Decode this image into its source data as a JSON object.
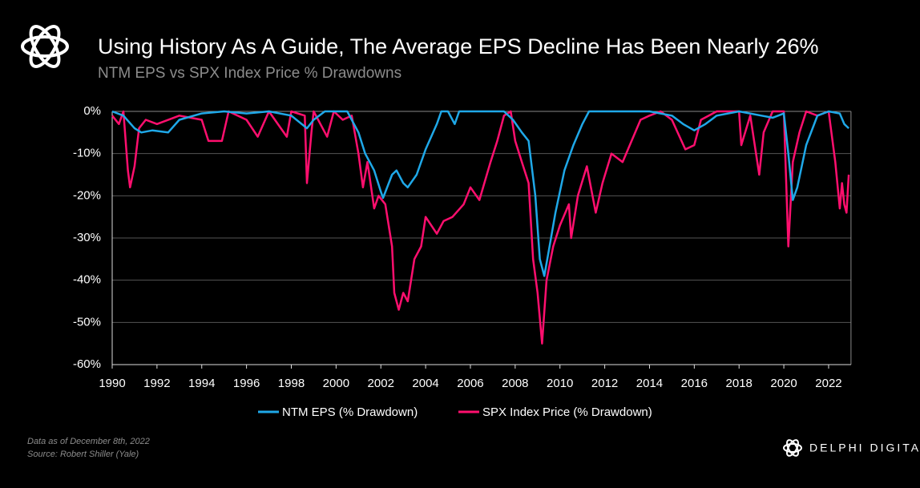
{
  "chart_data": {
    "type": "line",
    "title": "Using History As A Guide, The Average EPS Decline Has Been Nearly 26%",
    "subtitle": "NTM EPS vs SPX Index Price % Drawdowns",
    "footnote": [
      "Data as of December  8th, 2022",
      "Source: Robert Shiller (Yale)"
    ],
    "brand": "DELPHI DIGITAL",
    "xlim": [
      1990,
      2023
    ],
    "xticks": [
      1990,
      1992,
      1994,
      1996,
      1998,
      2000,
      2002,
      2004,
      2006,
      2008,
      2010,
      2012,
      2014,
      2016,
      2018,
      2020,
      2022
    ],
    "ylim": [
      -60,
      0
    ],
    "yticks": [
      {
        "value": 0,
        "label": "0%"
      },
      {
        "value": -10,
        "label": "-10%"
      },
      {
        "value": -20,
        "label": "-20%"
      },
      {
        "value": -30,
        "label": "-30%"
      },
      {
        "value": -40,
        "label": "-40%"
      },
      {
        "value": -50,
        "label": "-50%"
      },
      {
        "value": -60,
        "label": "-60%"
      }
    ],
    "grid": true,
    "legend": "bottom",
    "series": [
      {
        "name": "NTM EPS (% Drawdown)",
        "color": "#1fa8e8",
        "x": [
          1990,
          1990.5,
          1991,
          1991.3,
          1991.8,
          1992.5,
          1993,
          1994,
          1995,
          1996,
          1997,
          1998,
          1998.7,
          1999,
          1999.5,
          2000,
          2000.5,
          2001,
          2001.3,
          2001.7,
          2002,
          2002.1,
          2002.5,
          2002.7,
          2003,
          2003.2,
          2003.6,
          2004,
          2004.5,
          2004.7,
          2005,
          2005.3,
          2005.5,
          2007,
          2007.5,
          2007.9,
          2008.3,
          2008.6,
          2008.9,
          2009.1,
          2009.3,
          2009.5,
          2009.8,
          2010.2,
          2010.6,
          2011,
          2011.3,
          2012,
          2014,
          2015,
          2015.5,
          2016,
          2016.5,
          2017,
          2018,
          2019,
          2019.5,
          2020,
          2020.2,
          2020.4,
          2020.6,
          2021,
          2021.5,
          2022,
          2022.5,
          2022.7,
          2022.9
        ],
        "values": [
          0,
          -1,
          -4,
          -5,
          -4.5,
          -5,
          -2,
          -0.5,
          0,
          -0.5,
          0,
          -1,
          -4,
          -2,
          0,
          0,
          0,
          -5,
          -10,
          -14,
          -19,
          -20.5,
          -15,
          -14,
          -17,
          -18,
          -15,
          -9,
          -3,
          0,
          0,
          -3,
          0,
          0,
          0,
          -2,
          -5,
          -7,
          -20,
          -35,
          -39,
          -33,
          -24,
          -14,
          -8,
          -3,
          0,
          0,
          0,
          -1,
          -3,
          -4.5,
          -3,
          -1,
          0,
          -1,
          -1.5,
          -0.5,
          -10,
          -21,
          -18,
          -8,
          -1,
          0,
          -0.5,
          -3,
          -4
        ]
      },
      {
        "name": "SPX Index Price (% Drawdown)",
        "color": "#ff0f6e",
        "x": [
          1990,
          1990.3,
          1990.5,
          1990.7,
          1990.8,
          1991,
          1991.2,
          1991.5,
          1992,
          1993,
          1994,
          1994.3,
          1994.9,
          1995.2,
          1996,
          1996.5,
          1997,
          1997.8,
          1998,
          1998.6,
          1998.7,
          1998.9,
          1999,
          1999.6,
          1999.9,
          2000.3,
          2000.7,
          2001,
          2001.2,
          2001.4,
          2001.7,
          2001.9,
          2002.2,
          2002.5,
          2002.6,
          2002.8,
          2003,
          2003.2,
          2003.5,
          2003.8,
          2004,
          2004.5,
          2004.8,
          2005.2,
          2005.7,
          2006,
          2006.4,
          2006.9,
          2007.2,
          2007.5,
          2007.8,
          2008,
          2008.3,
          2008.6,
          2008.8,
          2009,
          2009.2,
          2009.4,
          2009.7,
          2010,
          2010.4,
          2010.5,
          2010.8,
          2011.2,
          2011.6,
          2011.9,
          2012.3,
          2012.8,
          2013.2,
          2013.6,
          2014,
          2014.5,
          2015,
          2015.6,
          2016,
          2016.3,
          2017,
          2018,
          2018.1,
          2018.5,
          2018.9,
          2019.1,
          2019.5,
          2020,
          2020.2,
          2020.4,
          2020.7,
          2021,
          2021.5,
          2022,
          2022.3,
          2022.5,
          2022.6,
          2022.7,
          2022.8,
          2022.9
        ],
        "values": [
          -1,
          -3,
          0,
          -14,
          -18,
          -13,
          -4,
          -2,
          -3,
          -1,
          -2,
          -7,
          -7,
          0,
          -2,
          -6,
          0,
          -6,
          0,
          -1,
          -17,
          -5,
          0,
          -6,
          0,
          -2,
          -1,
          -10,
          -18,
          -12,
          -23,
          -20,
          -22,
          -32,
          -43,
          -47,
          -43,
          -45,
          -35,
          -32,
          -25,
          -29,
          -26,
          -25,
          -22,
          -18,
          -21,
          -12,
          -7,
          -1,
          0,
          -7,
          -12,
          -17,
          -35,
          -43,
          -55,
          -40,
          -32,
          -27,
          -22,
          -30,
          -20,
          -13,
          -24,
          -17,
          -10,
          -12,
          -7,
          -2,
          -1,
          0,
          -2,
          -9,
          -8,
          -2,
          0,
          0,
          -8,
          -1,
          -15,
          -5,
          0,
          0,
          -32,
          -12,
          -5,
          0,
          -1,
          0,
          -12,
          -23,
          -17,
          -22,
          -24,
          -15
        ]
      }
    ]
  }
}
